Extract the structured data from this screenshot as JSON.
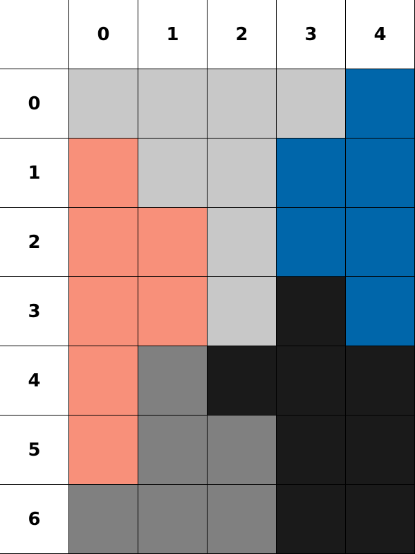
{
  "columns": [
    "0",
    "1",
    "2",
    "3",
    "4"
  ],
  "rows": [
    "0",
    "1",
    "2",
    "3",
    "4",
    "5",
    "6"
  ],
  "palette": {
    "L": "#c8c8c8",
    "B": "#0066aa",
    "S": "#f8907a",
    "G": "#808080",
    "K": "#1a1a1a"
  },
  "grid": [
    [
      "L",
      "L",
      "L",
      "L",
      "B"
    ],
    [
      "S",
      "L",
      "L",
      "B",
      "B"
    ],
    [
      "S",
      "S",
      "L",
      "B",
      "B"
    ],
    [
      "S",
      "S",
      "L",
      "K",
      "B"
    ],
    [
      "S",
      "G",
      "K",
      "K",
      "K"
    ],
    [
      "S",
      "G",
      "G",
      "K",
      "K"
    ],
    [
      "G",
      "G",
      "G",
      "K",
      "K"
    ]
  ]
}
